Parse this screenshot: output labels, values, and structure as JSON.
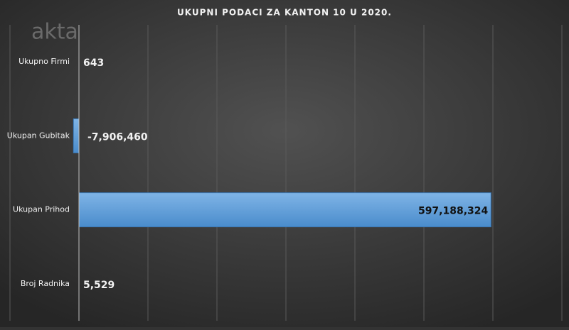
{
  "chart_data": {
    "type": "bar",
    "orientation": "horizontal",
    "title": "UKUPNI PODACI ZA KANTON 10 U 2020.",
    "watermark": "akta",
    "categories": [
      "Ukupno Firmi",
      "Ukupan Gubitak",
      "Ukupan Prihod",
      "Broj Radnika"
    ],
    "values": [
      643,
      -7906460,
      597188324,
      5529
    ],
    "value_labels": [
      "643",
      "-7,906,460",
      "597,188,324",
      "5,529"
    ],
    "color": "#5b9bd5",
    "xlim": [
      -100000000,
      700000000
    ],
    "xticks": [
      -100000000,
      0,
      100000000,
      200000000,
      300000000,
      400000000,
      500000000,
      600000000,
      700000000
    ],
    "grid": true
  }
}
